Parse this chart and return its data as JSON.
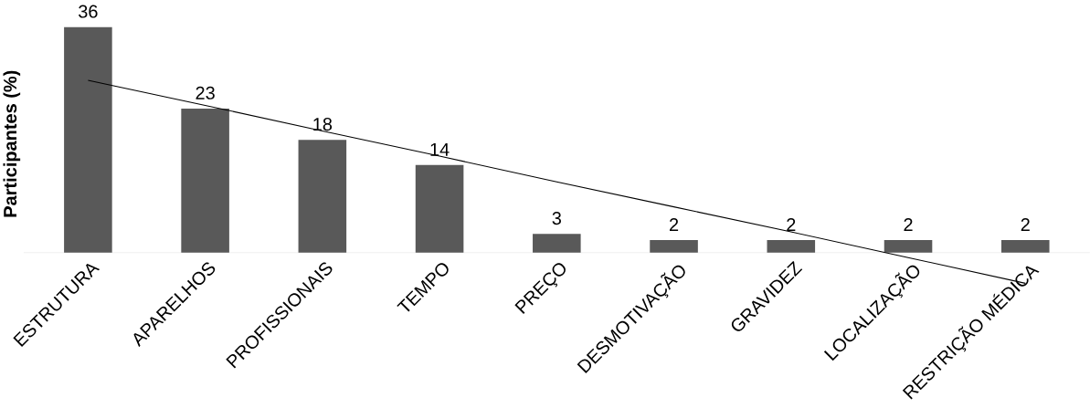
{
  "chart_data": {
    "type": "bar",
    "ylabel": "Participantes (%)",
    "categories": [
      "ESTRUTURA",
      "APARELHOS",
      "PROFISSIONAIS",
      "TEMPO",
      "PREÇO",
      "DESMOTIVAÇÃO",
      "GRAVIDEZ",
      "LOCALIZAÇÃO",
      "RESTRIÇÃO MÉDICA"
    ],
    "series": [
      {
        "color": "#595959",
        "values": [
          36,
          23,
          18,
          14,
          3,
          2,
          2,
          2,
          2
        ],
        "value_labels": [
          "36",
          "23",
          "18",
          "14",
          "3",
          "2",
          "2",
          "2",
          "2"
        ]
      },
      {
        "type": "line",
        "color": "#000000",
        "values": [
          27.5,
          23.5,
          19.4,
          15.4,
          11.3,
          7.3,
          3.3,
          -0.8,
          -4.9
        ]
      }
    ]
  }
}
